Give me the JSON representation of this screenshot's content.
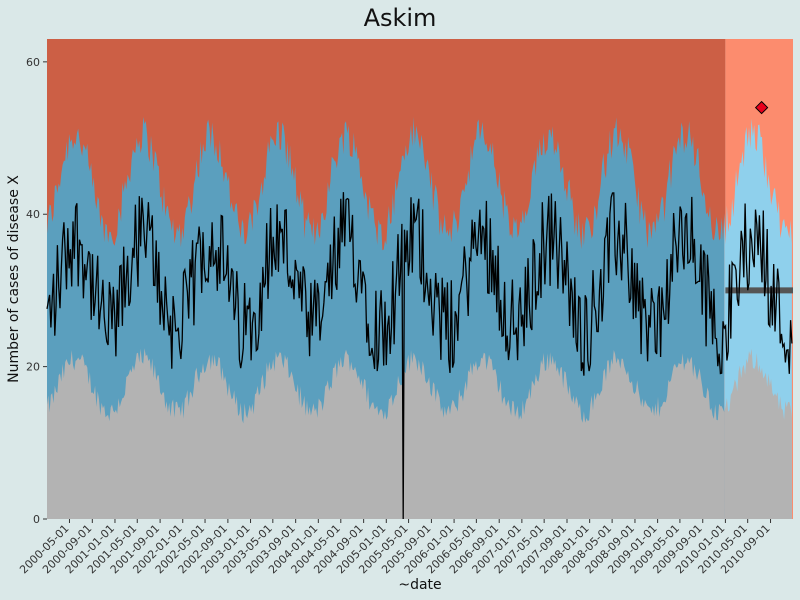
{
  "chart_data": {
    "type": "area",
    "title": "Askim",
    "xlabel": "~date",
    "ylabel": "Number of cases of disease X",
    "ylim": [
      0,
      63
    ],
    "xlim": [
      "2000-01-01",
      "2010-12-31"
    ],
    "baseline_end": "2010-01-01",
    "y_ticks": [
      0,
      20,
      40,
      60
    ],
    "x_ticks": [
      "2000-05-01",
      "2000-09-01",
      "2001-01-01",
      "2001-05-01",
      "2001-09-01",
      "2002-01-01",
      "2002-05-01",
      "2002-09-01",
      "2003-01-01",
      "2003-05-01",
      "2003-09-01",
      "2004-01-01",
      "2004-05-01",
      "2004-09-01",
      "2005-01-01",
      "2005-05-01",
      "2005-09-01",
      "2006-01-01",
      "2006-05-01",
      "2006-09-01",
      "2007-01-01",
      "2007-05-01",
      "2007-09-01",
      "2008-01-01",
      "2008-05-01",
      "2008-09-01",
      "2009-01-01",
      "2009-05-01",
      "2009-09-01",
      "2010-01-01",
      "2010-05-01",
      "2010-09-01"
    ],
    "bands": {
      "baseline_colors": {
        "low": "#b3b3b3",
        "normal": "#5b9fbe",
        "high": "#cc5f45"
      },
      "current_colors": {
        "low": "#b3b3b3",
        "normal": "#8fd0ec",
        "high": "#fc8c6e"
      },
      "seasonal_low_base": 17.5,
      "seasonal_low_amp": 3.5,
      "seasonal_high_base": 44,
      "seasonal_high_amp": 6.5,
      "seasonal_peak_month": 5
    },
    "series": [
      {
        "color": "#000000",
        "base": 31,
        "amp": 6,
        "noise": 6.5
      }
    ],
    "highlighted_point": {
      "date": "2010-07-15",
      "value": 54,
      "color": "#e8001c"
    },
    "horizontal_segment": {
      "start": "2010-01-01",
      "end": "2010-12-31",
      "value": 30,
      "color": "#555555"
    },
    "dip": {
      "date": "2005-04-01",
      "value": 0
    }
  }
}
